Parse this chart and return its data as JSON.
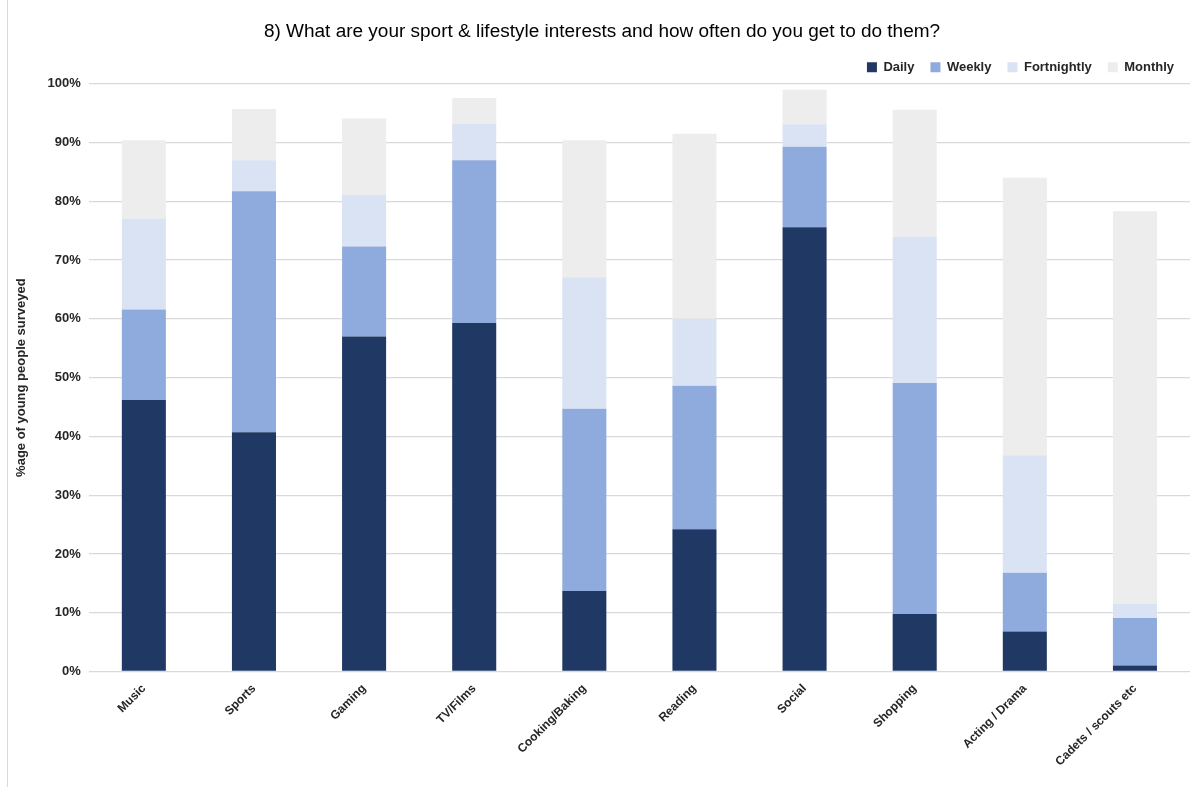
{
  "chart_data": {
    "type": "bar",
    "title": "8) What are your sport & lifestyle interests and how often do you get to do them?",
    "ylabel": "%age of young people surveyed",
    "categories": [
      "Music",
      "Sports",
      "Gaming",
      "TV/Films",
      "Cooking/Baking",
      "Reading",
      "Social",
      "Shopping",
      "Acting / Drama",
      "Cadets / scouts etc"
    ],
    "stacked": true,
    "series": [
      {
        "name": "Daily",
        "color": "#203864",
        "values": [
          46.2,
          40.7,
          57.0,
          59.3,
          13.7,
          24.2,
          75.6,
          9.8,
          6.8,
          1.0
        ]
      },
      {
        "name": "Weekly",
        "color": "#8faadc",
        "values": [
          15.4,
          41.0,
          15.3,
          27.7,
          31.0,
          24.4,
          13.7,
          39.3,
          10.0,
          8.1
        ]
      },
      {
        "name": "Fortnightly",
        "color": "#dae3f3",
        "values": [
          15.5,
          5.3,
          8.8,
          6.2,
          22.4,
          11.4,
          3.8,
          24.9,
          20.0,
          2.4
        ]
      },
      {
        "name": "Monthly",
        "color": "#ededed",
        "values": [
          13.3,
          8.7,
          13.0,
          4.4,
          23.3,
          31.5,
          5.9,
          21.6,
          47.2,
          66.8
        ]
      }
    ],
    "ylim": [
      0,
      100
    ],
    "yticks": [
      {
        "value": 0,
        "label": "0%"
      },
      {
        "value": 10,
        "label": "10%"
      },
      {
        "value": 20,
        "label": "20%"
      },
      {
        "value": 30,
        "label": "30%"
      },
      {
        "value": 40,
        "label": "40%"
      },
      {
        "value": 50,
        "label": "50%"
      },
      {
        "value": 60,
        "label": "60%"
      },
      {
        "value": 70,
        "label": "70%"
      },
      {
        "value": 80,
        "label": "80%"
      },
      {
        "value": 90,
        "label": "90%"
      },
      {
        "value": 100,
        "label": "100%"
      }
    ],
    "grid": "y",
    "legend": "top right"
  }
}
